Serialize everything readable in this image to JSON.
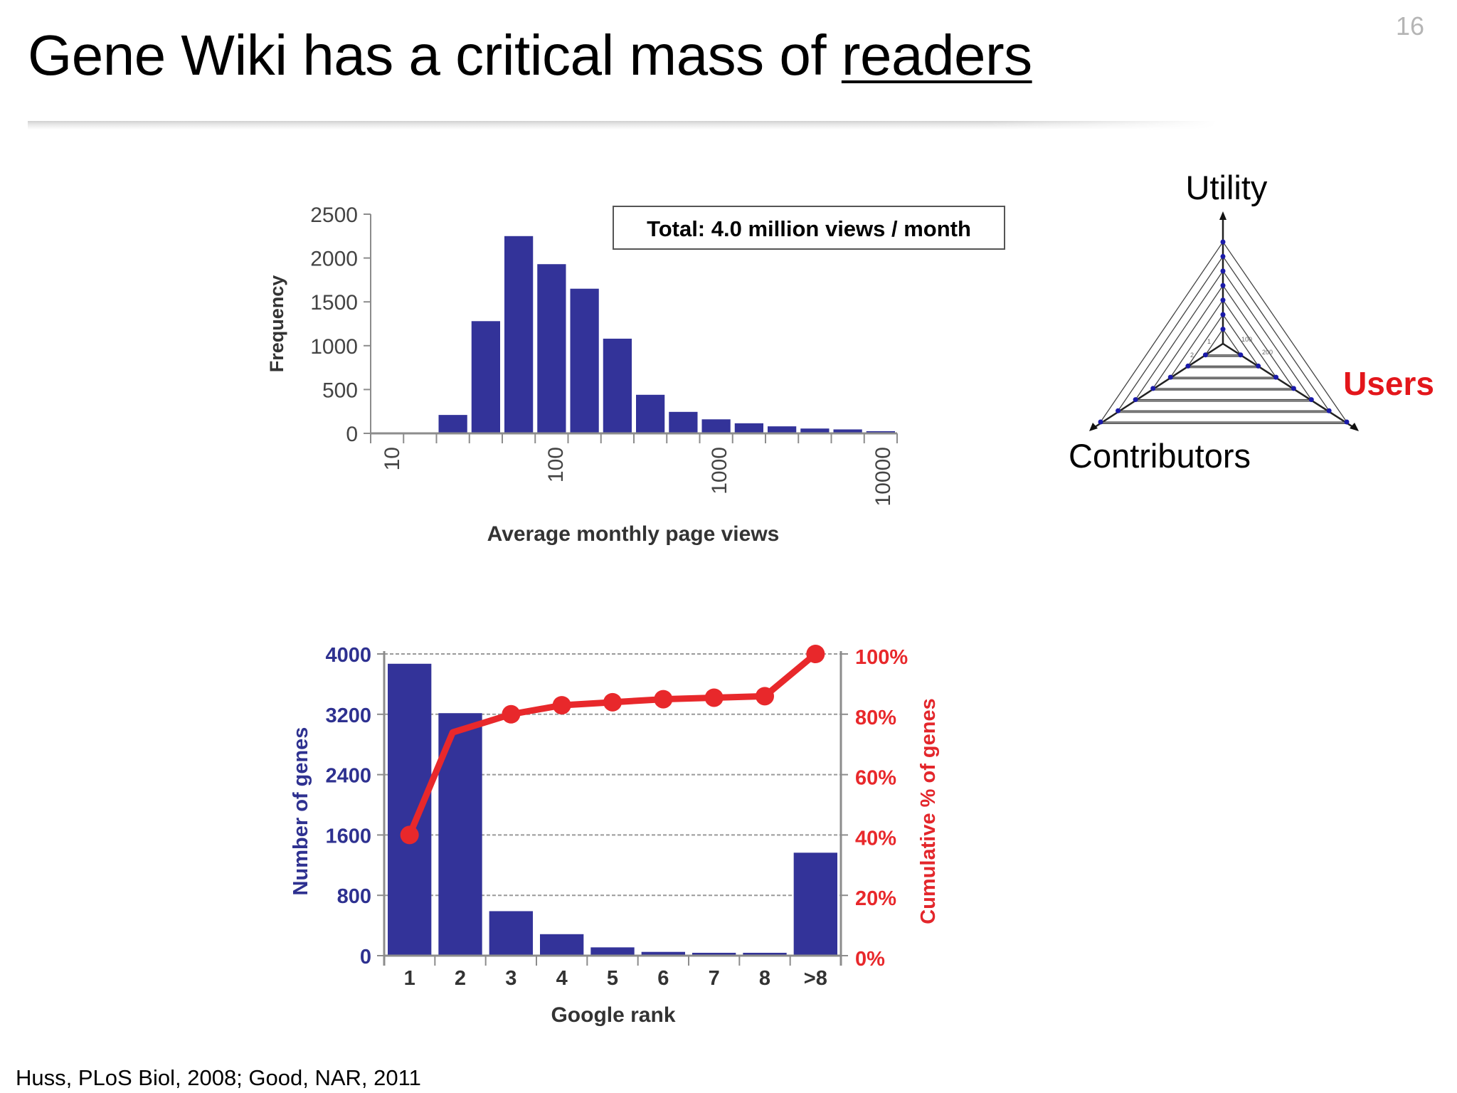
{
  "slide": {
    "title_prefix": "Gene Wiki has a critical mass of ",
    "title_emphasis": "readers",
    "number": "16",
    "citation": "Huss, PLoS Biol, 2008; Good, NAR, 2011"
  },
  "colors": {
    "bar_blue": "#333399",
    "axis_navy": "#2e3190",
    "line_red": "#e8282b",
    "users_red": "#e3161b",
    "axis_gray": "#8c8c8c"
  },
  "histogram": {
    "annotation": "Total: 4.0 million views / month",
    "ylabel": "Frequency",
    "xlabel": "Average monthly page views",
    "yticks": [
      "0",
      "500",
      "1000",
      "1500",
      "2000",
      "2500"
    ],
    "xticks": [
      "10",
      "100",
      "1000",
      "10000"
    ]
  },
  "rank_chart": {
    "ylabel_left": "Number of genes",
    "ylabel_right": "Cumulative % of genes",
    "xlabel": "Google rank",
    "yticks_left": [
      "0",
      "800",
      "1600",
      "2400",
      "3200",
      "4000"
    ],
    "yticks_right": [
      "0%",
      "20%",
      "40%",
      "60%",
      "80%",
      "100%"
    ],
    "categories": [
      "1",
      "2",
      "3",
      "4",
      "5",
      "6",
      "7",
      "8",
      ">8"
    ]
  },
  "radar": {
    "axis_top": "Utility",
    "axis_right": "Users",
    "axis_left": "Contributors",
    "inner_tick_labels": [
      "1",
      "2",
      "100",
      "200"
    ]
  },
  "chart_data": [
    {
      "type": "bar",
      "title": "",
      "annotation": "Total: 4.0 million views / month",
      "xlabel": "Average monthly page views",
      "ylabel": "Frequency",
      "xscale": "log",
      "xlim": [
        10,
        10000
      ],
      "ylim": [
        0,
        2500
      ],
      "x_tick_labels": [
        "10",
        "100",
        "1000",
        "10000"
      ],
      "y_tick_labels": [
        0,
        500,
        1000,
        1500,
        2000,
        2500
      ],
      "bin_edges_log10": [
        1.0,
        1.1875,
        1.375,
        1.5625,
        1.75,
        1.9375,
        2.125,
        2.3125,
        2.5,
        2.6875,
        2.875,
        3.0625,
        3.25,
        3.4375,
        3.625,
        3.8125,
        4.0
      ],
      "values": [
        0,
        0,
        210,
        1280,
        2250,
        1930,
        1650,
        1080,
        440,
        245,
        160,
        115,
        80,
        55,
        45,
        25
      ],
      "grid": false,
      "legend": null
    },
    {
      "type": "bar",
      "secondary_type": "line",
      "xlabel": "Google rank",
      "ylabel": "Number of genes",
      "ylabel_right": "Cumulative % of genes",
      "categories": [
        "1",
        "2",
        "3",
        "4",
        "5",
        "6",
        "7",
        "8",
        ">8"
      ],
      "series": [
        {
          "name": "Number of genes",
          "type": "bar",
          "axis": "left",
          "values": [
            3870,
            3215,
            590,
            285,
            110,
            50,
            38,
            38,
            1365
          ]
        },
        {
          "name": "Cumulative % of genes",
          "type": "line",
          "axis": "right",
          "values": [
            40,
            74,
            80,
            83,
            84,
            85,
            85.5,
            86,
            100
          ]
        }
      ],
      "ylim": [
        0,
        4000
      ],
      "ylim_right": [
        0,
        100
      ],
      "y_tick_labels": [
        0,
        800,
        1600,
        2400,
        3200,
        4000
      ],
      "y_tick_labels_right": [
        "0%",
        "20%",
        "40%",
        "60%",
        "80%",
        "100%"
      ],
      "grid": "horizontal dashed",
      "legend": null
    },
    {
      "type": "radar",
      "axes": [
        "Utility",
        "Users",
        "Contributors"
      ],
      "levels": 7,
      "highlighted_axis": "Users",
      "inner_tick_labels": [
        "1",
        "2",
        "100",
        "200"
      ]
    }
  ]
}
